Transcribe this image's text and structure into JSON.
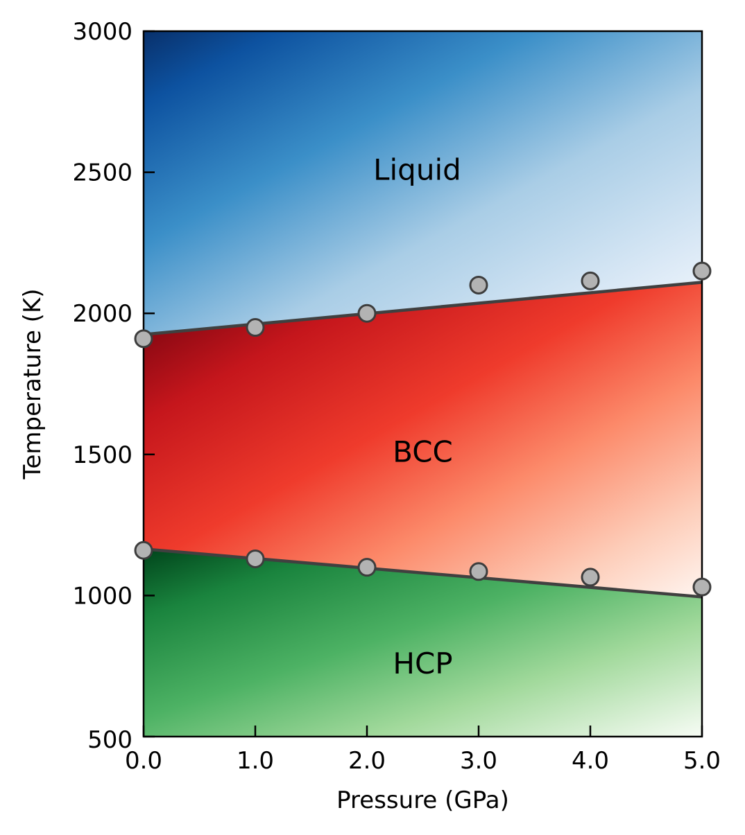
{
  "chart_data": {
    "type": "scatter",
    "title": "",
    "xlabel": "Pressure (GPa)",
    "ylabel": "Temperature (K)",
    "xlim": [
      0,
      5
    ],
    "ylim": [
      500,
      3000
    ],
    "x_ticks": [
      "0.0",
      "1.0",
      "2.0",
      "3.0",
      "4.0",
      "5.0"
    ],
    "y_ticks": [
      "500",
      "1000",
      "1500",
      "2000",
      "2500",
      "3000"
    ],
    "regions": [
      {
        "label": "Liquid",
        "label_x": 2.45,
        "label_y": 2510,
        "color": "#2171b5"
      },
      {
        "label": "BCC",
        "label_x": 2.5,
        "label_y": 1510,
        "color": "#cb181d"
      },
      {
        "label": "HCP",
        "label_x": 2.5,
        "label_y": 760,
        "color": "#238b45"
      }
    ],
    "series": [
      {
        "x": [
          0,
          1,
          2,
          3,
          4,
          5
        ],
        "y": [
          1910,
          1950,
          2000,
          2100,
          2115,
          2150
        ],
        "fit": [
          1925,
          2110
        ]
      },
      {
        "x": [
          0,
          1,
          2,
          3,
          4,
          5
        ],
        "y": [
          1160,
          1130,
          1100,
          1085,
          1065,
          1030
        ],
        "fit": [
          1165,
          995
        ]
      }
    ],
    "marker_color": "#b3b3b3",
    "line_color": "#404040",
    "grid": false,
    "legend": "none"
  }
}
